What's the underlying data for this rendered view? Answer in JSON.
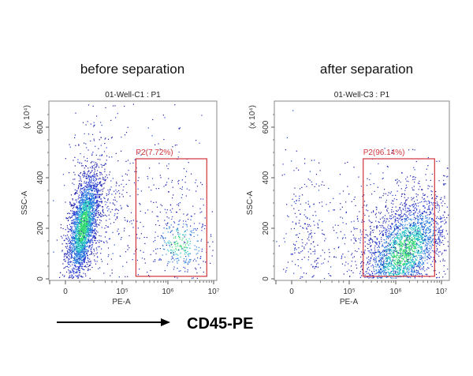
{
  "figure": {
    "cd45_label": "CD45-PE"
  },
  "chart_data": [
    {
      "type": "scatter",
      "heading": "before separation",
      "title": "01-Well-C1 : P1",
      "xlabel": "PE-A",
      "ylabel": "SSC-A",
      "yunit": "(x 10⁴)",
      "x_scale": "biexponential",
      "x_ticks": [
        "0",
        "10⁵",
        "10⁶",
        "10⁷"
      ],
      "y_ticks": [
        "0",
        "200",
        "400",
        "600"
      ],
      "ylim": [
        0,
        700
      ],
      "gate": {
        "name": "P2",
        "label": "P2(7.72%)",
        "percent": 7.72,
        "x_range": [
          "2×10⁵",
          "7×10⁶"
        ],
        "y_range": [
          10,
          475
        ],
        "color": "#d0343c"
      },
      "grid": false
    },
    {
      "type": "scatter",
      "heading": "after separation",
      "title": "01-Well-C3 : P1",
      "xlabel": "PE-A",
      "ylabel": "SSC-A",
      "yunit": "(x 10⁴)",
      "x_scale": "biexponential",
      "x_ticks": [
        "0",
        "10⁵",
        "10⁶",
        "10⁷"
      ],
      "y_ticks": [
        "0",
        "200",
        "400",
        "600"
      ],
      "ylim": [
        0,
        700
      ],
      "gate": {
        "name": "P2",
        "label": "P2(96.14%)",
        "percent": 96.14,
        "x_range": [
          "2×10⁵",
          "7×10⁶"
        ],
        "y_range": [
          10,
          475
        ],
        "color": "#d0343c"
      },
      "grid": false
    }
  ]
}
